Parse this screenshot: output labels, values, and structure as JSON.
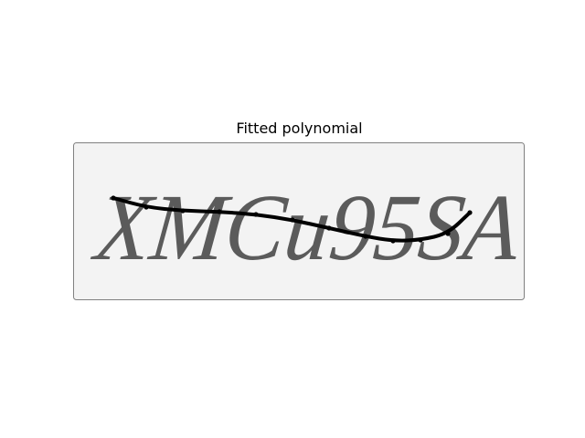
{
  "title": "Fitted polynomial",
  "image": {
    "captcha_text": "XMCu95SA",
    "background_color": "#f3f3f3",
    "glyph_color": "#4f4f4f",
    "frame_color": "#808080"
  },
  "curve": {
    "color": "#000000",
    "kind": "polynomial fit overlay"
  }
}
